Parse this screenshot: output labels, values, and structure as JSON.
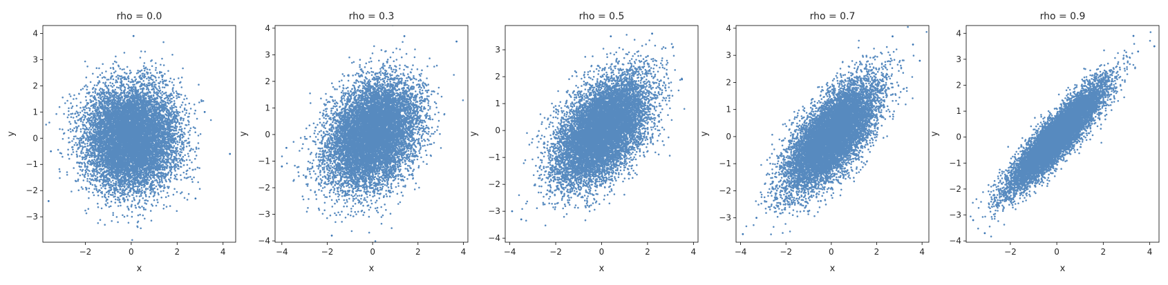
{
  "figure": {
    "point_color": "#3a75b4"
  },
  "chart_data": [
    {
      "type": "scatter",
      "title": "rho = 0.0",
      "rho": 0.0,
      "xlabel": "x",
      "ylabel": "y",
      "xlim": [
        -3.85,
        4.55
      ],
      "ylim": [
        -3.97,
        4.3
      ],
      "xticks": [
        -2,
        0,
        2,
        4
      ],
      "xtick_labels": [
        "−2",
        "0",
        "2",
        "4"
      ],
      "yticks": [
        -3,
        -2,
        -1,
        0,
        1,
        2,
        3,
        4
      ],
      "ytick_labels": [
        "−3",
        "−2",
        "−1",
        "0",
        "1",
        "2",
        "3",
        "4"
      ],
      "n_points": 10000,
      "outliers": [
        [
          4.3,
          -0.6
        ],
        [
          -3.6,
          -2.4
        ],
        [
          0.1,
          3.9
        ],
        [
          3.2,
          1.0
        ],
        [
          -3.5,
          -0.5
        ],
        [
          2.8,
          -2.3
        ]
      ]
    },
    {
      "type": "scatter",
      "title": "rho = 0.3",
      "rho": 0.3,
      "xlabel": "x",
      "ylabel": "y",
      "xlim": [
        -4.3,
        4.2
      ],
      "ylim": [
        -4.05,
        4.1
      ],
      "xticks": [
        -4,
        -2,
        0,
        2,
        4
      ],
      "xtick_labels": [
        "−4",
        "−2",
        "0",
        "2",
        "4"
      ],
      "yticks": [
        -4,
        -3,
        -2,
        -1,
        0,
        1,
        2,
        3,
        4
      ],
      "ytick_labels": [
        "−4",
        "−3",
        "−2",
        "−1",
        "0",
        "1",
        "2",
        "3",
        "4"
      ],
      "n_points": 10000,
      "outliers": [
        [
          3.7,
          3.5
        ],
        [
          -4.0,
          -1.2
        ],
        [
          -3.8,
          -0.5
        ],
        [
          1.4,
          3.7
        ],
        [
          -1.8,
          -3.8
        ]
      ]
    },
    {
      "type": "scatter",
      "title": "rho = 0.5",
      "rho": 0.5,
      "xlabel": "x",
      "ylabel": "y",
      "xlim": [
        -4.2,
        4.2
      ],
      "ylim": [
        -4.15,
        3.9
      ],
      "xticks": [
        -4,
        -2,
        0,
        2,
        4
      ],
      "xtick_labels": [
        "−4",
        "−2",
        "0",
        "2",
        "4"
      ],
      "yticks": [
        -4,
        -3,
        -2,
        -1,
        0,
        1,
        2,
        3
      ],
      "ytick_labels": [
        "−4",
        "−3",
        "−2",
        "−1",
        "0",
        "1",
        "2",
        "3"
      ],
      "n_points": 10000,
      "outliers": [
        [
          -3.9,
          -3.0
        ],
        [
          3.5,
          1.9
        ],
        [
          0.4,
          3.5
        ],
        [
          -3.5,
          -3.3
        ],
        [
          2.2,
          3.6
        ]
      ]
    },
    {
      "type": "scatter",
      "title": "rho = 0.7",
      "rho": 0.7,
      "xlabel": "x",
      "ylabel": "y",
      "xlim": [
        -4.2,
        4.3
      ],
      "ylim": [
        -3.9,
        4.1
      ],
      "xticks": [
        -4,
        -2,
        0,
        2,
        4
      ],
      "xtick_labels": [
        "−4",
        "−2",
        "0",
        "2",
        "4"
      ],
      "yticks": [
        -3,
        -2,
        -1,
        0,
        1,
        2,
        3,
        4
      ],
      "ytick_labels": [
        "−3",
        "−2",
        "−1",
        "0",
        "1",
        "2",
        "3",
        "4"
      ],
      "n_points": 10000,
      "outliers": [
        [
          -3.9,
          -3.6
        ],
        [
          3.9,
          2.8
        ],
        [
          3.6,
          3.4
        ],
        [
          -3.3,
          -3.0
        ],
        [
          2.7,
          3.7
        ]
      ]
    },
    {
      "type": "scatter",
      "title": "rho = 0.9",
      "rho": 0.9,
      "xlabel": "x",
      "ylabel": "y",
      "xlim": [
        -3.9,
        4.4
      ],
      "ylim": [
        -4.05,
        4.3
      ],
      "xticks": [
        -2,
        0,
        2,
        4
      ],
      "xtick_labels": [
        "−2",
        "0",
        "2",
        "4"
      ],
      "yticks": [
        -4,
        -3,
        -2,
        -1,
        0,
        1,
        2,
        3,
        4
      ],
      "ytick_labels": [
        "−4",
        "−3",
        "−2",
        "−1",
        "0",
        "1",
        "2",
        "3",
        "4"
      ],
      "n_points": 10000,
      "outliers": [
        [
          -3.6,
          -3.2
        ],
        [
          4.2,
          3.5
        ],
        [
          3.3,
          3.9
        ],
        [
          -3.1,
          -3.7
        ],
        [
          3.5,
          3.3
        ]
      ]
    }
  ]
}
